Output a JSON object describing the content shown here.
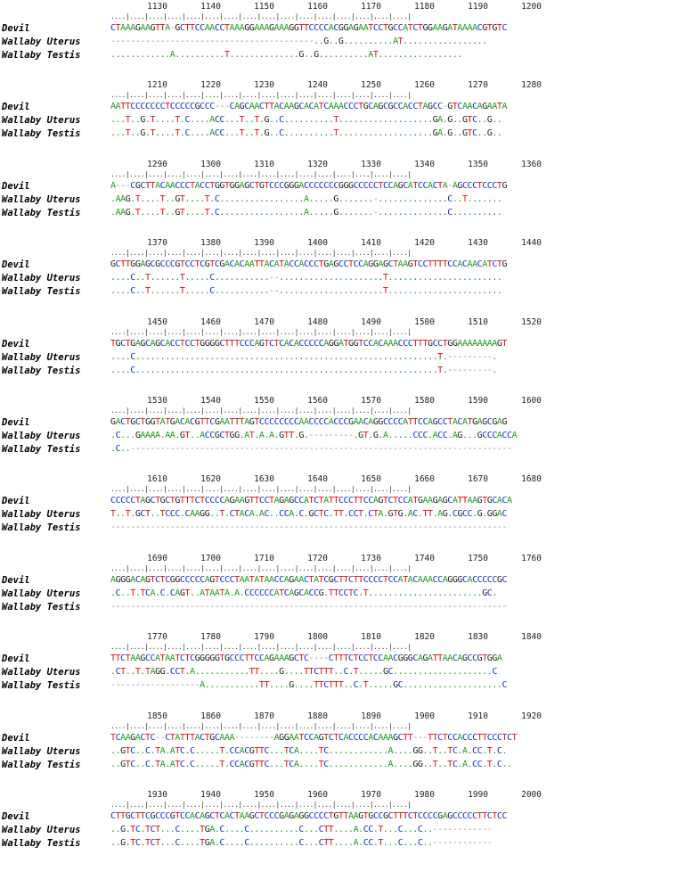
{
  "labels": [
    "Devil",
    "Wallaby Uterus",
    "Wallaby Testis"
  ],
  "tick_mark_pattern": "....|....|....|....|....|....|....|....|....|....|....|....|....|....|....|....|",
  "blocks": [
    {
      "ticks": [
        1130,
        1140,
        1150,
        1160,
        1170,
        1180,
        1190,
        1200
      ],
      "seqs": [
        "CTAAAGAAGTTA-GCTTCCAACCTAAAGGAAAGAAAGGTTCCCCACGGAGAATCCTGCCATCTGGAAGATAAAACGTGTC",
        "-----------------------------------------..G..G..........AT.................",
        "............A..........T..............G..G..........AT................."
      ]
    },
    {
      "ticks": [
        1210,
        1220,
        1230,
        1240,
        1250,
        1260,
        1270,
        1280
      ],
      "seqs": [
        "AATTCCCCCCCTCCCCCGCCC---CAGCAACTTACAAGCACATCAAACCCTGCAGCGCCACCTAGCC-GTCAACAGAATA",
        "...T..G.T....T.C....ACC...T..T.G..C..........T...................GA.G..GTC..G..",
        "...T..G.T....T.C....ACC...T..T.G..C..........T...................GA.G..GTC..G.."
      ]
    },
    {
      "ticks": [
        1290,
        1300,
        1310,
        1320,
        1330,
        1340,
        1350,
        1360
      ],
      "seqs": [
        "A---CGCTTACAACCCTACCTGGTGGAGCTGTCCCGGGACCCCCCCGGGCCCCCTCCAGCATCCACTA-AGCCCTCCCTG",
        ".AAG.T....T..GT....T.C.................A.....G.......-..............C..T.......",
        ".AAG.T....T..GT....T.C.................A.....G.......-..............C.........."
      ]
    },
    {
      "ticks": [
        1370,
        1380,
        1390,
        1400,
        1410,
        1420,
        1430,
        1440
      ],
      "seqs": [
        "GCTTGGAGCGCCCGTCCTCGTCGACACAATTACATACCACCCTGAGCCTCCAGGAGCTAAGTCCTTTTCCACAACATCTG",
        "....C..T......T.....C...........--.....................T.......................",
        "....C..T......T.....C...........--.....................T......................."
      ]
    },
    {
      "ticks": [
        1450,
        1460,
        1470,
        1480,
        1490,
        1500,
        1510,
        1520
      ],
      "seqs": [
        "TGCTGAGCAGCACCTCCTGGGGCTTTCCCAGTCTCACACCCCCAGGATGGTCCACAAACCCTTTGCCTGGAAAAAAAAGT",
        "....C.............................................................T.---------.",
        "....C.............................................................T.---------."
      ]
    },
    {
      "ticks": [
        1530,
        1540,
        1550,
        1560,
        1570,
        1580,
        1590,
        1600
      ],
      "seqs": [
        "GACTGCTGGTATGACACGTTCGAATTTAGTCCCCCCCCAACCCCACCCGAACAGGCCCCATTCCAGCCTACATGAGCGAG",
        ".C...GAAAA.AA.GT..ACCGCTGG.AT.A.A.GTT.G.---------.GT.G.A.....CCC.ACC.AG...GCCCACCA",
        ".C..-----------------------------------------------------------------------------"
      ]
    },
    {
      "ticks": [
        1610,
        1620,
        1630,
        1640,
        1650,
        1660,
        1670,
        1680
      ],
      "seqs": [
        "CCCCCTAGCTGCTGTTTCTCCCCAGAAGTTCCTAGAGCCATCTATTCCCTTCCAGTCTCCATGAAGAGCATTAAGTGCACA",
        "T..T.GCT..TCCC.CAAGG..T.CTACA.AC..CCA.C.GCTC.TT.CCT.CTA.GTG.AC.TT.AG.CGCC.G.GGAC",
        "--------------------------------------------------------------------------------"
      ]
    },
    {
      "ticks": [
        1690,
        1700,
        1710,
        1720,
        1730,
        1740,
        1750,
        1760
      ],
      "seqs": [
        "AGGGACAGTCTCGGCCCCCAGTCCCTAATATAACCAGAACTATCGCTTCTTCCCCTCCATACAAACCAGGGCACCCCCGC",
        ".C..T.TCA.C.CAGT..ATAATA.A.CCCCCCATCAGCACCG.TTCCTC.T.......................GC.",
        "--------------------------------------------------------------------------------"
      ]
    },
    {
      "ticks": [
        1770,
        1780,
        1790,
        1800,
        1810,
        1820,
        1830,
        1840
      ],
      "seqs": [
        "TTCTAAGCCATAATCTCGGGGGTGCCCTTCCAGAAAGCTC----CTTTCTCCTCCAACGGGCAGATTAACAGCCGTGGA",
        ".CT..T.TAGG.CCT.A...........TT....G....TTCTTT..C.T.....GC....................C",
        "------------------A...........TT....G....TTCTTT..C.T.....GC....................C"
      ]
    },
    {
      "ticks": [
        1850,
        1860,
        1870,
        1880,
        1890,
        1900,
        1910,
        1920
      ],
      "seqs": [
        "TCAAGACTC--CTATTTACTGCAAA--------AGGAATCCAGTCTCACCCCACAAAGCTT---TTCTCCACCCTTCCCTCT",
        "..GTC..C.TA.ATC.C.....T.CCACGTTC...TCA....TC............A....GG..T..TC.A.CC.T.C.",
        "..GTC..C.TA.ATC.C.....T.CCACGTTC...TCA....TC............A....GG..T..TC.A.CC.T.C.."
      ]
    },
    {
      "ticks": [
        1930,
        1940,
        1950,
        1960,
        1970,
        1980,
        1990,
        2000
      ],
      "seqs": [
        "CTTGCTTCGCCCGTCCACAGCTCACTAAGCTCCCGAGAGGCCCCTGTTAAGTGCCGCTTTCTCCCCGAGCCCCCTTCTCC",
        "..G.TC.TCT...C....TGA.C....C..........C...CTT....A.CC.T...C...C..------------",
        "..G.TC.TCT...C....TGA.C....C..........C...CTT....A.CC.T...C...C..------------"
      ]
    }
  ]
}
